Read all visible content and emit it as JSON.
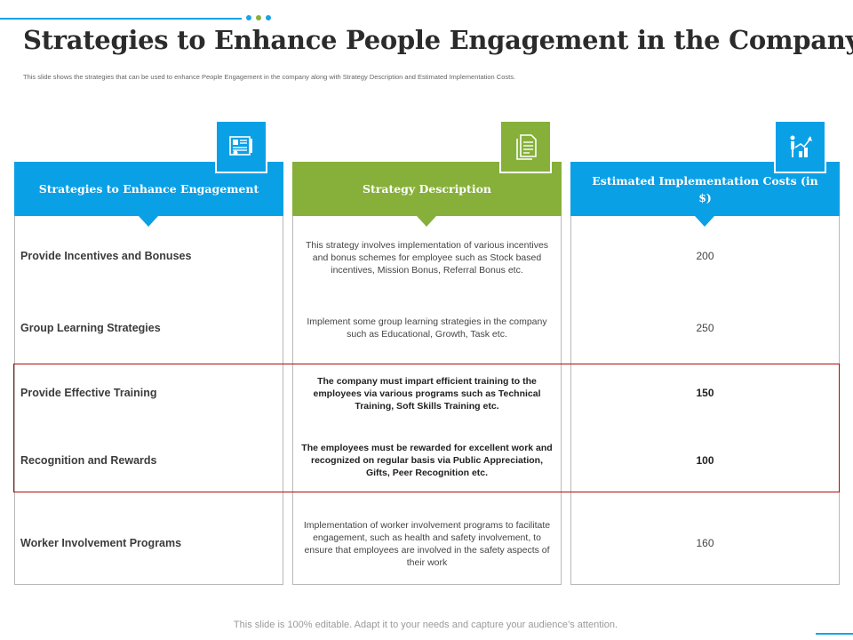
{
  "slide": {
    "title": "Strategies to Enhance People Engagement in the Company",
    "subtitle": "This slide shows the strategies that can be used to enhance People Engagement in the company along with Strategy Description and Estimated Implementation Costs.",
    "footer": "This slide is 100% editable. Adapt it to your needs and capture your audience’s attention."
  },
  "colors": {
    "blue": "#0aa0e6",
    "green": "#86b03a",
    "accent_line": "#1aa3e8",
    "dot_blue": "#1aa3e8",
    "dot_green": "#86b03a",
    "highlight_border": "#b00a0a"
  },
  "columns": [
    {
      "header": "Strategies to Enhance Engagement",
      "icon": "certificate-icon",
      "color": "#0aa0e6"
    },
    {
      "header": "Strategy Description",
      "icon": "document-icon",
      "color": "#86b03a"
    },
    {
      "header": "Estimated Implementation Costs (in $)",
      "icon": "growth-chart-icon",
      "color": "#0aa0e6"
    }
  ],
  "rows": [
    {
      "strategy": "Provide Incentives and Bonuses",
      "description": "This strategy involves implementation of various incentives and bonus schemes for employee such as Stock based incentives, Mission Bonus, Referral Bonus etc.",
      "cost": "200",
      "highlighted": false
    },
    {
      "strategy": "Group Learning Strategies",
      "description": "Implement some group learning strategies in the company such as Educational, Growth, Task etc.",
      "cost": "250",
      "highlighted": false
    },
    {
      "strategy": "Provide Effective Training",
      "description": "The company must impart efficient training to the employees via various programs such as Technical Training,  Soft Skills Training etc.",
      "cost": "150",
      "highlighted": true
    },
    {
      "strategy": "Recognition and Rewards",
      "description": "The employees must be rewarded for excellent work and recognized on regular basis via Public Appreciation, Gifts, Peer Recognition  etc.",
      "cost": "100",
      "highlighted": true
    },
    {
      "strategy": "Worker Involvement Programs",
      "description": "Implementation of worker involvement programs to facilitate engagement, such as health and safety involvement, to ensure that employees are involved in the safety aspects of their work",
      "cost": "160",
      "highlighted": false
    }
  ]
}
